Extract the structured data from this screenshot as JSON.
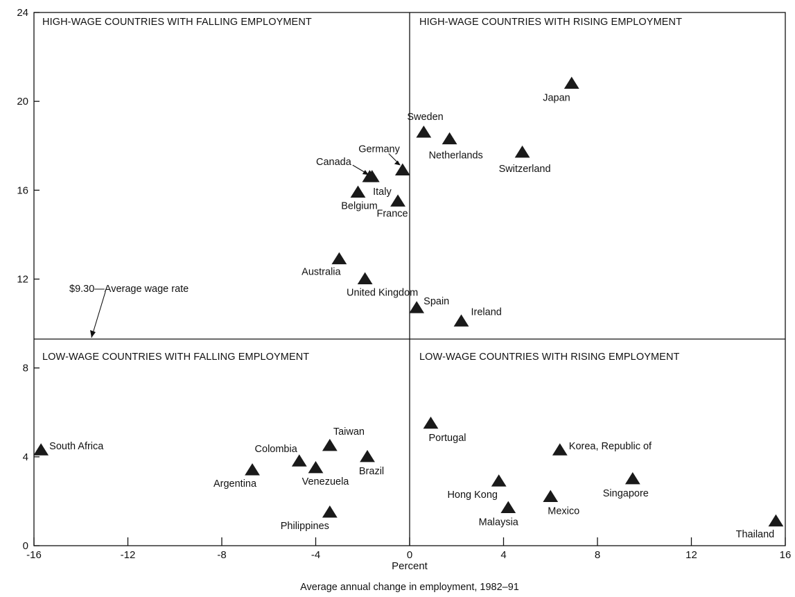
{
  "chart_data": {
    "type": "scatter",
    "xlabel": "Percent",
    "footnote": "Average annual change in employment, 1982–91",
    "xlim": [
      -16,
      16
    ],
    "ylim": [
      0,
      24
    ],
    "xticks": [
      "-16",
      "-12",
      "-8",
      "-4",
      "0",
      "4",
      "8",
      "12",
      "16"
    ],
    "yticks": [
      "0",
      "4",
      "8",
      "12",
      "16",
      "20",
      "24"
    ],
    "quadrants": {
      "top_left": "HIGH-WAGE COUNTRIES WITH FALLING EMPLOYMENT",
      "top_right": "HIGH-WAGE COUNTRIES WITH RISING EMPLOYMENT",
      "bottom_left": "LOW-WAGE COUNTRIES WITH FALLING EMPLOYMENT",
      "bottom_right": "LOW-WAGE COUNTRIES WITH RISING EMPLOYMENT"
    },
    "reference": {
      "value": 9.3,
      "label": "$9.30—Average wage rate"
    },
    "points": [
      {
        "name": "Japan",
        "x": 6.9,
        "y": 20.8
      },
      {
        "name": "Sweden",
        "x": 0.6,
        "y": 18.6
      },
      {
        "name": "Netherlands",
        "x": 1.7,
        "y": 18.3
      },
      {
        "name": "Switzerland",
        "x": 4.8,
        "y": 17.7
      },
      {
        "name": "Germany",
        "x": -0.3,
        "y": 16.9
      },
      {
        "name": "Canada",
        "x": -1.6,
        "y": 16.6
      },
      {
        "name": "Belgium",
        "x": -2.2,
        "y": 15.9
      },
      {
        "name": "Italy",
        "x": -1.7,
        "y": 16.6
      },
      {
        "name": "France",
        "x": -0.5,
        "y": 15.5
      },
      {
        "name": "Australia",
        "x": -3.0,
        "y": 12.9
      },
      {
        "name": "United Kingdom",
        "x": -1.9,
        "y": 12.0
      },
      {
        "name": "Spain",
        "x": 0.3,
        "y": 10.7
      },
      {
        "name": "Ireland",
        "x": 2.2,
        "y": 10.1
      },
      {
        "name": "South Africa",
        "x": -15.7,
        "y": 4.3
      },
      {
        "name": "Taiwan",
        "x": -3.4,
        "y": 4.5
      },
      {
        "name": "Colombia",
        "x": -4.7,
        "y": 3.8
      },
      {
        "name": "Venezuela",
        "x": -4.0,
        "y": 3.5
      },
      {
        "name": "Argentina",
        "x": -6.7,
        "y": 3.4
      },
      {
        "name": "Brazil",
        "x": -1.8,
        "y": 4.0
      },
      {
        "name": "Philippines",
        "x": -3.4,
        "y": 1.5
      },
      {
        "name": "Portugal",
        "x": 0.9,
        "y": 5.5
      },
      {
        "name": "Korea, Republic of",
        "x": 6.4,
        "y": 4.3
      },
      {
        "name": "Singapore",
        "x": 9.5,
        "y": 3.0
      },
      {
        "name": "Hong Kong",
        "x": 3.8,
        "y": 2.9
      },
      {
        "name": "Mexico",
        "x": 6.0,
        "y": 2.2
      },
      {
        "name": "Malaysia",
        "x": 4.2,
        "y": 1.7
      },
      {
        "name": "Thailand",
        "x": 15.6,
        "y": 1.1
      }
    ]
  }
}
